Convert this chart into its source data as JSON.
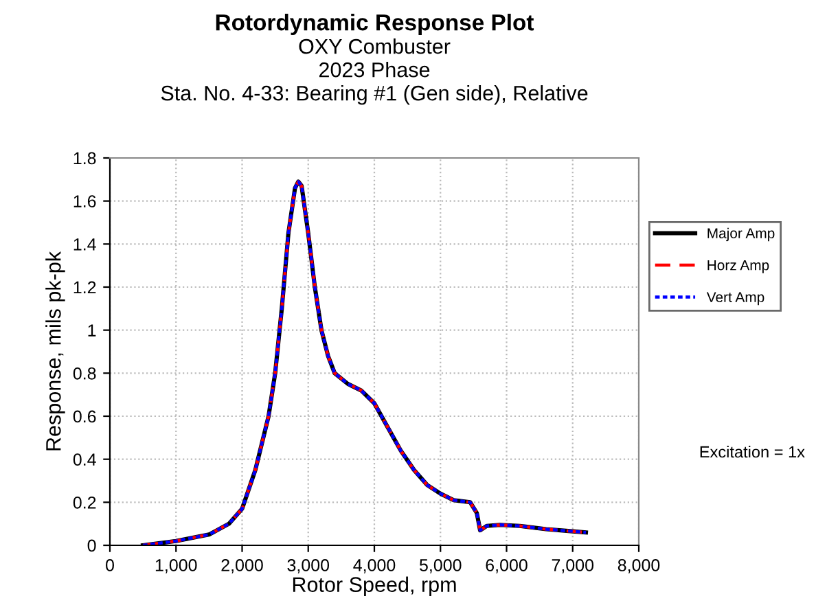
{
  "chart_data": {
    "type": "line",
    "title": "Rotordynamic Response Plot",
    "subtitle": "OXY Combuster\n2023 Phase\nSta. No. 4-33: Bearing #1 (Gen side), Relative",
    "xlabel": "Rotor Speed, rpm",
    "ylabel": "Response, mils pk-pk",
    "x": [
      500,
      1000,
      1500,
      1800,
      2000,
      2200,
      2400,
      2500,
      2600,
      2700,
      2800,
      2850,
      2900,
      3000,
      3100,
      3200,
      3300,
      3400,
      3600,
      3800,
      4000,
      4200,
      4400,
      4600,
      4800,
      5000,
      5200,
      5450,
      5550,
      5600,
      5700,
      5900,
      6200,
      6600,
      7000,
      7200
    ],
    "series": [
      {
        "name": "Major Amp",
        "color": "#000000",
        "line_style": "solid",
        "values": [
          0.0,
          0.02,
          0.05,
          0.1,
          0.17,
          0.35,
          0.6,
          0.8,
          1.1,
          1.45,
          1.66,
          1.69,
          1.67,
          1.45,
          1.2,
          1.0,
          0.88,
          0.8,
          0.75,
          0.72,
          0.66,
          0.55,
          0.44,
          0.35,
          0.28,
          0.24,
          0.21,
          0.2,
          0.15,
          0.07,
          0.09,
          0.095,
          0.09,
          0.075,
          0.065,
          0.06
        ]
      },
      {
        "name": "Horz Amp",
        "color": "#ff0000",
        "line_style": "dashed",
        "values": [
          0.0,
          0.02,
          0.05,
          0.1,
          0.17,
          0.35,
          0.6,
          0.8,
          1.1,
          1.45,
          1.66,
          1.69,
          1.67,
          1.45,
          1.2,
          1.0,
          0.88,
          0.8,
          0.75,
          0.72,
          0.66,
          0.55,
          0.44,
          0.35,
          0.28,
          0.24,
          0.21,
          0.2,
          0.15,
          0.07,
          0.09,
          0.095,
          0.09,
          0.075,
          0.065,
          0.06
        ]
      },
      {
        "name": "Vert Amp",
        "color": "#0000ff",
        "line_style": "dotted",
        "values": [
          0.0,
          0.02,
          0.05,
          0.1,
          0.17,
          0.35,
          0.6,
          0.8,
          1.1,
          1.45,
          1.66,
          1.69,
          1.67,
          1.45,
          1.2,
          1.0,
          0.88,
          0.8,
          0.75,
          0.72,
          0.66,
          0.55,
          0.44,
          0.35,
          0.28,
          0.24,
          0.21,
          0.2,
          0.15,
          0.07,
          0.09,
          0.095,
          0.09,
          0.075,
          0.065,
          0.06
        ]
      }
    ],
    "xlim": [
      0,
      8000
    ],
    "xticks": [
      0,
      {
        "value": 1000,
        "label": "1,000"
      },
      {
        "value": 2000,
        "label": "2,000"
      },
      {
        "value": 3000,
        "label": "3,000"
      },
      {
        "value": 4000,
        "label": "4,000"
      },
      {
        "value": 5000,
        "label": "5,000"
      },
      {
        "value": 6000,
        "label": "6,000"
      },
      {
        "value": 7000,
        "label": "7,000"
      },
      {
        "value": 8000,
        "label": "8,000"
      }
    ],
    "ylim": [
      0,
      1.8
    ],
    "yticks": [
      0,
      0.2,
      0.4,
      0.6,
      0.8,
      1,
      1.2,
      1.4,
      1.6,
      1.8
    ],
    "grid": true,
    "legend": "right",
    "marker": "none",
    "annotations": [
      "Excitation = 1x"
    ]
  }
}
